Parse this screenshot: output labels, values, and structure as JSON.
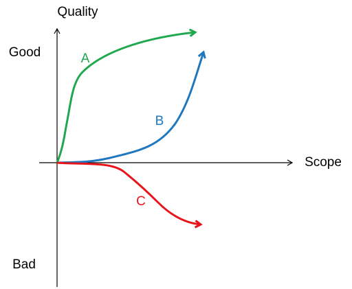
{
  "axes": {
    "y_label": "Quality",
    "y_top": "Good",
    "y_bottom": "Bad",
    "x_label": "Scope"
  },
  "curves": [
    {
      "label": "A"
    },
    {
      "label": "B"
    },
    {
      "label": "C"
    }
  ]
}
